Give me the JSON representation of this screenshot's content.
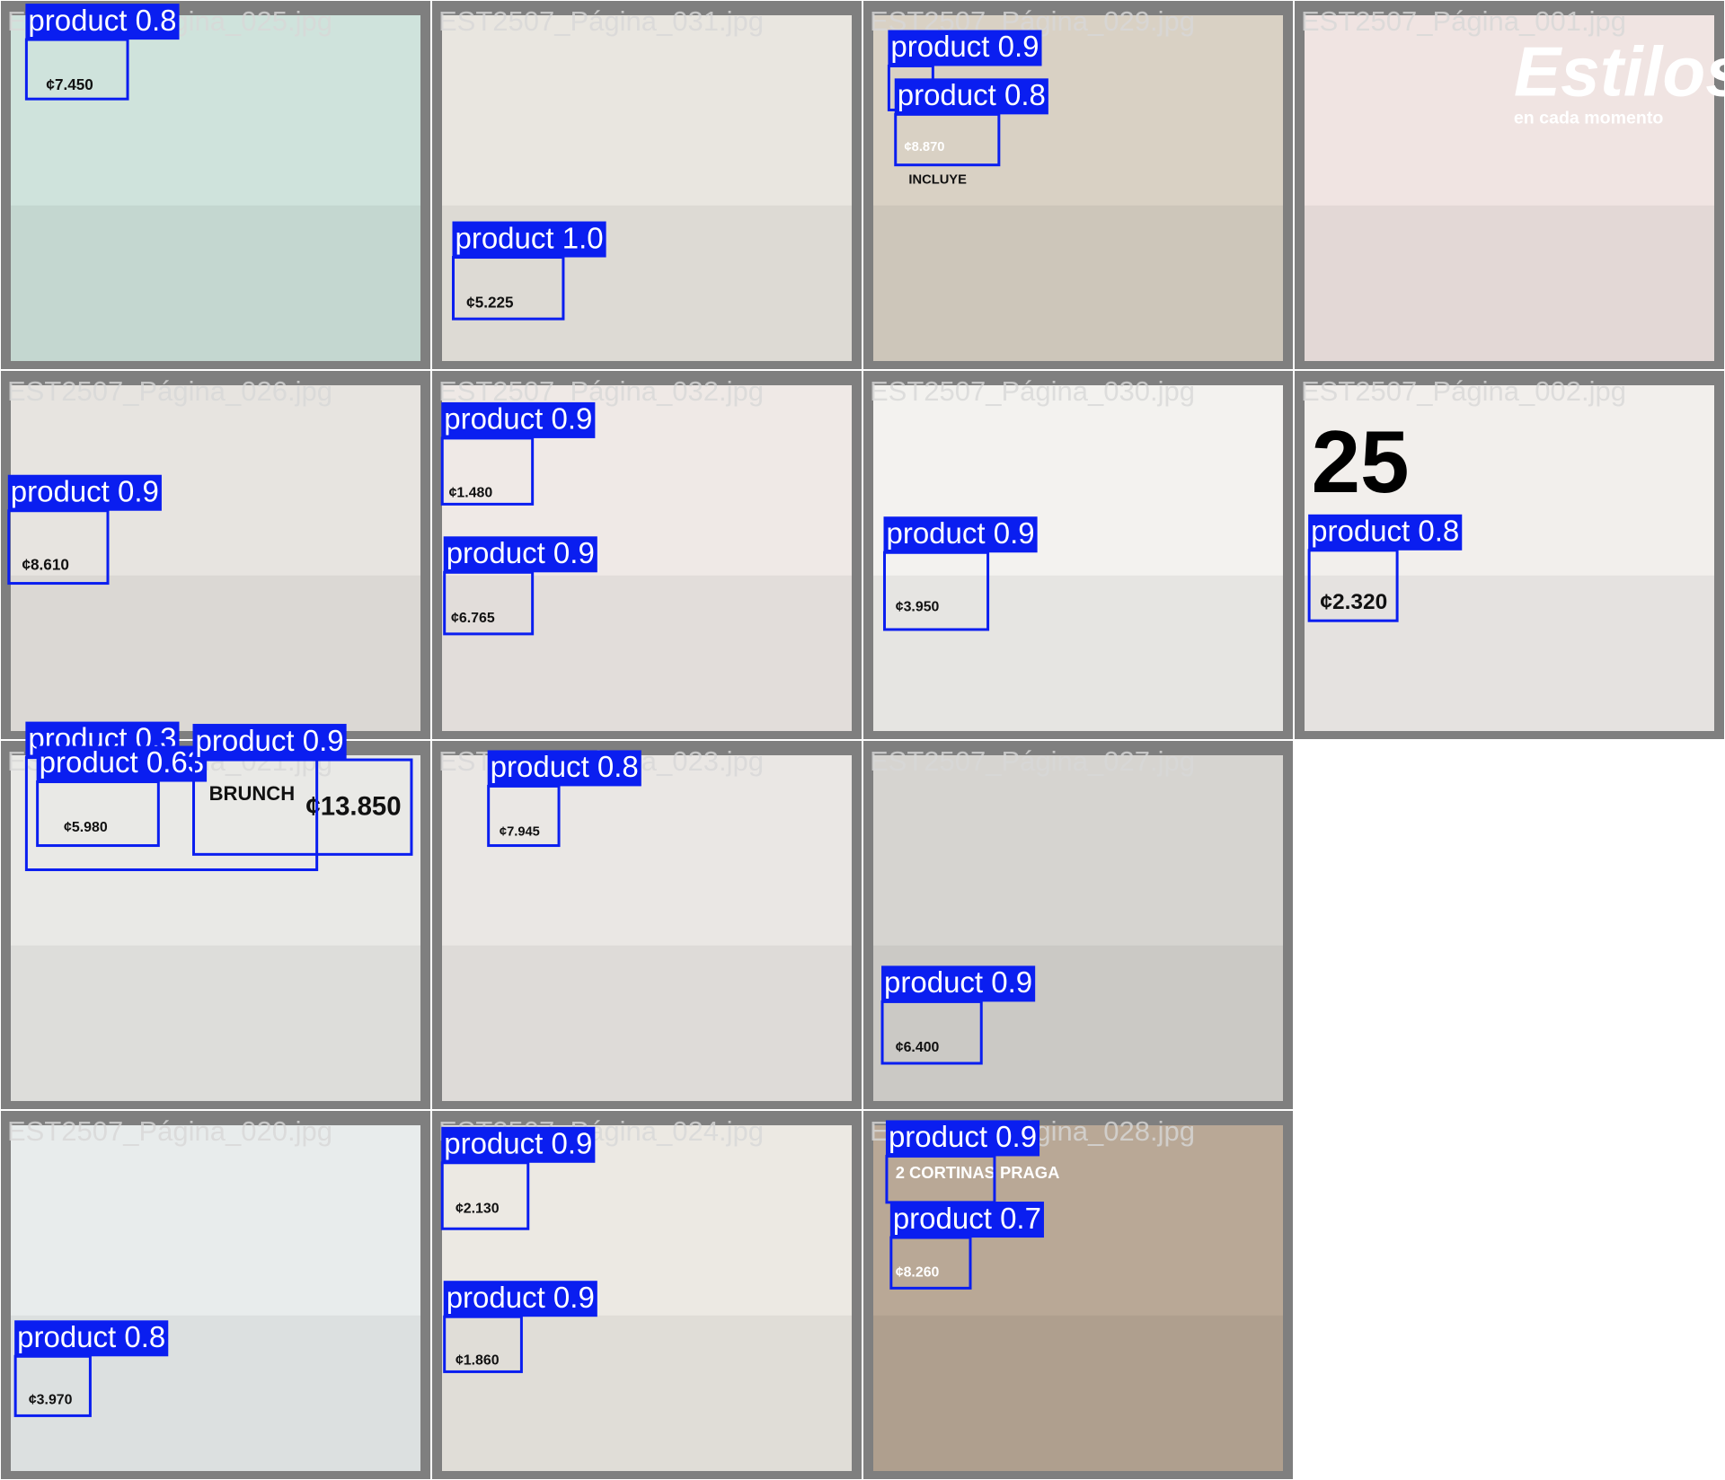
{
  "tiles": [
    {
      "file": "EST2507_Página_025.jpg",
      "detections": [
        "product 0.8"
      ],
      "texts": [
        "¢7.450"
      ]
    },
    {
      "file": "EST2507_Página_031.jpg",
      "detections": [
        "product 1.0"
      ],
      "texts": [
        "¢5.225"
      ]
    },
    {
      "file": "EST2507_Página_029.jpg",
      "detections": [
        "product 0.9",
        "product 0.8"
      ],
      "texts": [
        "¢8.870",
        "INCLUYE"
      ]
    },
    {
      "file": "EST2507_Página_001.jpg",
      "detections": [],
      "texts": [
        "Estilos",
        "en cada momento"
      ]
    },
    {
      "file": "EST2507_Página_026.jpg",
      "detections": [
        "product 0.9"
      ],
      "texts": [
        "¢8.610"
      ]
    },
    {
      "file": "EST2507_Página_032.jpg",
      "detections": [
        "product 0.9",
        "product 0.9"
      ],
      "texts": [
        "¢1.480",
        "¢6.765"
      ]
    },
    {
      "file": "EST2507_Página_030.jpg",
      "detections": [
        "product 0.9"
      ],
      "texts": [
        "¢3.950"
      ]
    },
    {
      "file": "EST2507_Página_002.jpg",
      "detections": [
        "product 0.8"
      ],
      "texts": [
        "25",
        "¢2.320"
      ]
    },
    {
      "file": "EST2507_Página_021.jpg",
      "detections": [
        "product 0.3",
        "product 0.63",
        "product 0.9"
      ],
      "texts": [
        "BRUNCH",
        "¢13.850",
        "¢5.980"
      ]
    },
    {
      "file": "EST2507_Página_023.jpg",
      "detections": [
        "product 0.8"
      ],
      "texts": [
        "¢7.945"
      ]
    },
    {
      "file": "EST2507_Página_027.jpg",
      "detections": [
        "product 0.9"
      ],
      "texts": [
        "¢6.400"
      ]
    },
    {
      "file": "EST2507_Página_020.jpg",
      "detections": [
        "product 0.8"
      ],
      "texts": [
        "¢3.970"
      ]
    },
    {
      "file": "EST2507_Página_024.jpg",
      "detections": [
        "product 0.9",
        "product 0.9"
      ],
      "texts": [
        "¢2.130",
        "¢1.860"
      ]
    },
    {
      "file": "EST2507_Página_028.jpg",
      "detections": [
        "product 0.9",
        "product 0.7"
      ],
      "texts": [
        "2 CORTINAS PRAGA",
        "¢8.260"
      ]
    }
  ]
}
